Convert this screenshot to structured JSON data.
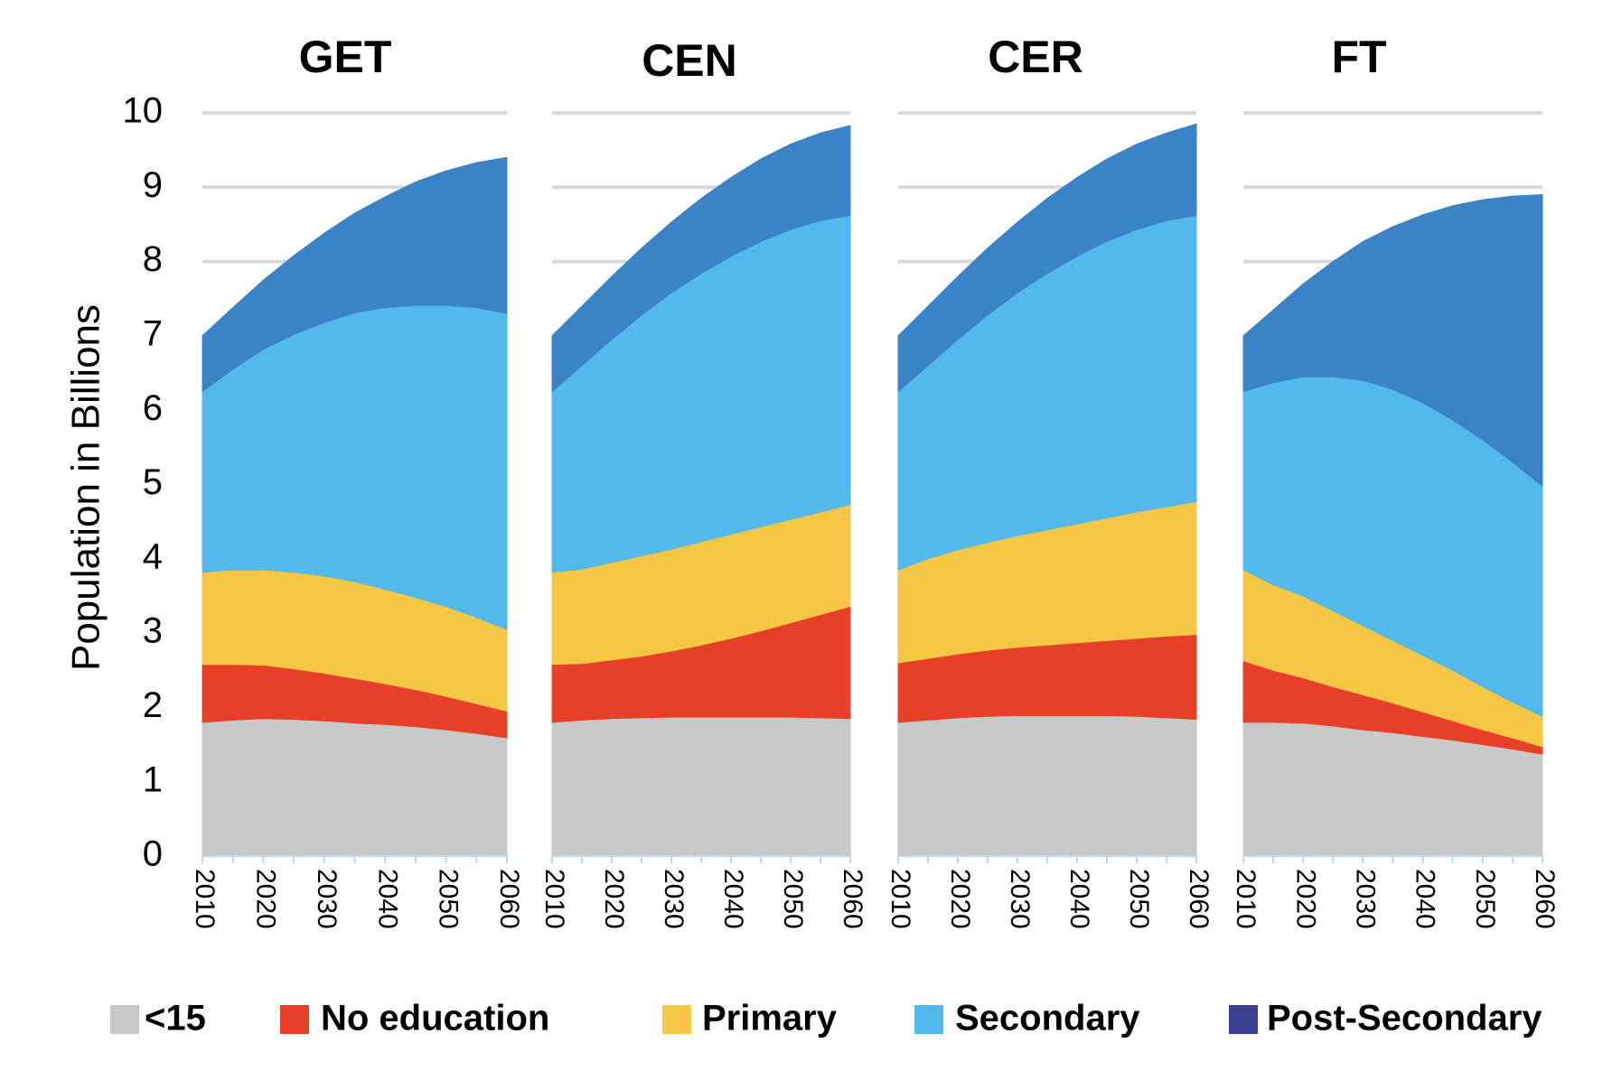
{
  "chart_data": {
    "type": "area",
    "stacked": true,
    "ylabel": "Population in Billions",
    "ylim": [
      0,
      10
    ],
    "yticks": [
      0,
      1,
      2,
      3,
      4,
      5,
      6,
      7,
      8,
      9,
      10
    ],
    "x": [
      2010,
      2015,
      2020,
      2025,
      2030,
      2035,
      2040,
      2045,
      2050,
      2055,
      2060
    ],
    "xtick_labels": [
      "2010",
      "2020",
      "2030",
      "2040",
      "2050",
      "2060"
    ],
    "grid": true,
    "legend_position": "bottom",
    "legend": [
      {
        "name": "<15",
        "color": "#c8c8c8"
      },
      {
        "name": "No education",
        "color": "#e84028"
      },
      {
        "name": "Primary",
        "color": "#f5c744"
      },
      {
        "name": "Secondary",
        "color": "#53b9eb"
      },
      {
        "name": "Post-Secondary",
        "color": "#3b3f94"
      }
    ],
    "area_colors": [
      "#c8c8c8",
      "#e84028",
      "#f5c744",
      "#53b9eb",
      "#3983c6"
    ],
    "panels": [
      {
        "title": "GET",
        "cumulative": {
          "<15": [
            1.8,
            1.83,
            1.85,
            1.84,
            1.82,
            1.79,
            1.77,
            1.74,
            1.7,
            1.65,
            1.59
          ],
          "No education": [
            2.58,
            2.58,
            2.57,
            2.52,
            2.46,
            2.39,
            2.32,
            2.24,
            2.15,
            2.05,
            1.95
          ],
          "Primary": [
            3.82,
            3.85,
            3.85,
            3.82,
            3.77,
            3.69,
            3.59,
            3.48,
            3.36,
            3.21,
            3.05
          ],
          "Secondary": [
            6.25,
            6.55,
            6.82,
            7.02,
            7.18,
            7.31,
            7.38,
            7.41,
            7.41,
            7.38,
            7.3
          ],
          "Post-Secondary": [
            7.0,
            7.38,
            7.75,
            8.08,
            8.38,
            8.65,
            8.87,
            9.07,
            9.22,
            9.33,
            9.4
          ]
        }
      },
      {
        "title": "CEN",
        "cumulative": {
          "<15": [
            1.8,
            1.83,
            1.85,
            1.86,
            1.87,
            1.87,
            1.87,
            1.87,
            1.87,
            1.86,
            1.85
          ],
          "No education": [
            2.58,
            2.59,
            2.64,
            2.69,
            2.76,
            2.84,
            2.93,
            3.03,
            3.14,
            3.25,
            3.36
          ],
          "Primary": [
            3.82,
            3.86,
            3.95,
            4.04,
            4.13,
            4.23,
            4.33,
            4.43,
            4.53,
            4.63,
            4.73
          ],
          "Secondary": [
            6.25,
            6.6,
            6.95,
            7.28,
            7.58,
            7.84,
            8.07,
            8.27,
            8.43,
            8.55,
            8.62
          ],
          "Post-Secondary": [
            7.0,
            7.4,
            7.8,
            8.18,
            8.53,
            8.85,
            9.13,
            9.38,
            9.58,
            9.73,
            9.83
          ]
        }
      },
      {
        "title": "CER",
        "cumulative": {
          "<15": [
            1.8,
            1.83,
            1.86,
            1.88,
            1.89,
            1.89,
            1.89,
            1.89,
            1.88,
            1.86,
            1.84
          ],
          "No education": [
            2.6,
            2.66,
            2.72,
            2.77,
            2.81,
            2.84,
            2.87,
            2.9,
            2.93,
            2.96,
            2.98
          ],
          "Primary": [
            3.85,
            4.0,
            4.12,
            4.22,
            4.31,
            4.39,
            4.47,
            4.55,
            4.63,
            4.7,
            4.77
          ],
          "Secondary": [
            6.25,
            6.6,
            6.95,
            7.28,
            7.58,
            7.84,
            8.07,
            8.27,
            8.43,
            8.55,
            8.62
          ],
          "Post-Secondary": [
            7.0,
            7.4,
            7.8,
            8.18,
            8.53,
            8.85,
            9.13,
            9.38,
            9.58,
            9.73,
            9.85
          ]
        }
      },
      {
        "title": "FT",
        "cumulative": {
          "<15": [
            1.8,
            1.8,
            1.79,
            1.75,
            1.7,
            1.66,
            1.61,
            1.56,
            1.5,
            1.44,
            1.37
          ],
          "No education": [
            2.63,
            2.5,
            2.4,
            2.28,
            2.17,
            2.06,
            1.94,
            1.82,
            1.7,
            1.59,
            1.47
          ],
          "Primary": [
            3.85,
            3.65,
            3.5,
            3.3,
            3.1,
            2.9,
            2.7,
            2.5,
            2.28,
            2.07,
            1.88
          ],
          "Secondary": [
            6.25,
            6.37,
            6.45,
            6.45,
            6.4,
            6.28,
            6.1,
            5.87,
            5.6,
            5.3,
            4.98
          ],
          "Post-Secondary": [
            7.0,
            7.35,
            7.7,
            8.0,
            8.27,
            8.47,
            8.63,
            8.75,
            8.83,
            8.88,
            8.9
          ]
        }
      }
    ]
  }
}
